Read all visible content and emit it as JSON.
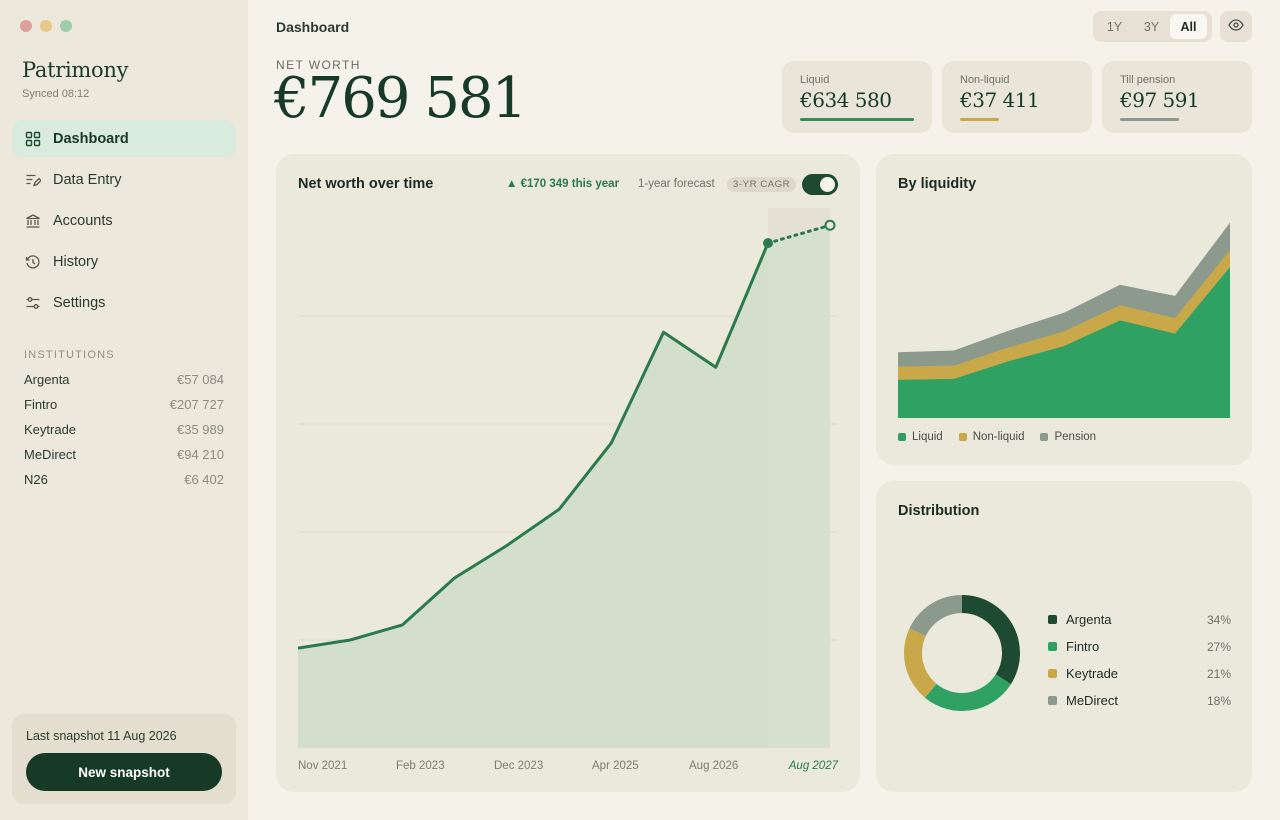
{
  "window": {
    "traffic_lights": [
      "#e0a09a",
      "#e8c98a",
      "#9fccab"
    ]
  },
  "sidebar": {
    "app_title": "Patrimony",
    "sync_status": "Synced 08:12",
    "nav": [
      {
        "label": "Dashboard",
        "icon": "grid-icon",
        "active": true
      },
      {
        "label": "Data Entry",
        "icon": "edit-list-icon",
        "active": false
      },
      {
        "label": "Accounts",
        "icon": "bank-icon",
        "active": false
      },
      {
        "label": "History",
        "icon": "history-icon",
        "active": false
      },
      {
        "label": "Settings",
        "icon": "sliders-icon",
        "active": false
      }
    ],
    "institutions_title": "INSTITUTIONS",
    "institutions": [
      {
        "name": "Argenta",
        "amount": "€57 084"
      },
      {
        "name": "Fintro",
        "amount": "€207 727"
      },
      {
        "name": "Keytrade",
        "amount": "€35 989"
      },
      {
        "name": "MeDirect",
        "amount": "€94 210"
      },
      {
        "name": "N26",
        "amount": "€6 402"
      }
    ],
    "snapshot_text": "Last snapshot 11 Aug 2026",
    "snapshot_button": "New snapshot"
  },
  "header": {
    "title": "Dashboard",
    "ranges": [
      "1Y",
      "3Y",
      "All"
    ],
    "active_range": "All"
  },
  "net_worth": {
    "label": "NET WORTH",
    "value": "€769 581"
  },
  "kpis": [
    {
      "label": "Liquid",
      "value": "€634 580",
      "color": "#2f8f57"
    },
    {
      "label": "Non-liquid",
      "value": "€37 411",
      "color": "#c9a84a"
    },
    {
      "label": "Till pension",
      "value": "€97 591",
      "color": "#8c9a8e"
    }
  ],
  "main_chart": {
    "title": "Net worth over time",
    "growth": "▲ €170 349 this year",
    "forecast_label": "1-year forecast",
    "cagr_badge": "3-YR CAGR",
    "forecast_on": true,
    "x_labels": [
      "Nov 2021",
      "Feb 2023",
      "Dec 2023",
      "Apr 2025",
      "Aug 2026",
      "Aug 2027"
    ]
  },
  "chart_data": [
    {
      "type": "area",
      "title": "Net worth over time",
      "ylim": [
        0,
        1000000
      ],
      "grid": true,
      "x_tick_labels": [
        "Nov 2021",
        "Feb 2023",
        "Dec 2023",
        "Apr 2025",
        "Aug 2026",
        "Aug 2027"
      ],
      "series": [
        {
          "values": [
            185000,
            200000,
            228000,
            315000,
            375000,
            442000,
            565000,
            770000,
            705000,
            935000
          ]
        }
      ],
      "forecast": {
        "from": 935000,
        "to": 968000
      }
    },
    {
      "type": "area",
      "title": "By liquidity",
      "stacked": true,
      "series": [
        {
          "name": "Liquid",
          "color": "#2fa163",
          "values": [
            86,
            88,
            128,
            162,
            220,
            190,
            340
          ]
        },
        {
          "name": "Non-liquid",
          "color": "#c9a84a",
          "values": [
            30,
            30,
            31,
            33,
            34,
            35,
            38
          ]
        },
        {
          "name": "Pension",
          "color": "#8c9a8e",
          "values": [
            32,
            34,
            38,
            42,
            46,
            50,
            62
          ]
        }
      ],
      "legend": "bottom"
    },
    {
      "type": "pie",
      "title": "Distribution",
      "donut": true,
      "slices": [
        {
          "label": "Argenta",
          "value": 34,
          "display": "34%",
          "color": "#1d4a30"
        },
        {
          "label": "Fintro",
          "value": 27,
          "display": "27%",
          "color": "#2fa163"
        },
        {
          "label": "Keytrade",
          "value": 21,
          "display": "21%",
          "color": "#c9a84a"
        },
        {
          "label": "MeDirect",
          "value": 18,
          "display": "18%",
          "color": "#8c9a8e"
        }
      ]
    }
  ]
}
